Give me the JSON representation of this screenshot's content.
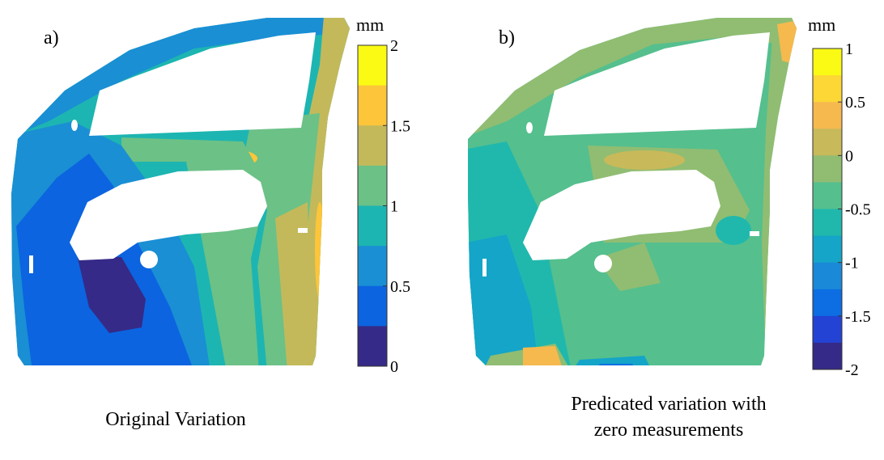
{
  "panels": [
    {
      "letter": "a)",
      "caption": "Original Variation",
      "colorbar_unit": "mm",
      "colorbar_range": [
        0,
        2
      ],
      "colorbar_ticks": [
        "2",
        "1.5",
        "1",
        "0.5",
        "0"
      ],
      "colorbar_colors": [
        "#fafa14",
        "#fcc53a",
        "#c3b95b",
        "#6cc186",
        "#1db5b1",
        "#1a8fd4",
        "#0c64e0",
        "#352a87"
      ]
    },
    {
      "letter": "b)",
      "caption_lines": [
        "Predicated variation with",
        "zero measurements"
      ],
      "colorbar_unit": "mm",
      "colorbar_range": [
        -2,
        1
      ],
      "colorbar_ticks": [
        "1",
        "0.5",
        "0",
        "-0.5",
        "-1",
        "-1.5",
        "-2"
      ],
      "colorbar_colors": [
        "#fafa14",
        "#fcd735",
        "#f6b94e",
        "#c8b95a",
        "#90bd72",
        "#55bf8e",
        "#20b8ac",
        "#14a5c8",
        "#1a8ad8",
        "#0c6ee2",
        "#2343d4",
        "#352a87"
      ]
    }
  ],
  "chart_data": [
    {
      "type": "heatmap",
      "title": "Original Variation",
      "colorbar_label": "mm",
      "value_range": [
        0,
        2
      ],
      "colorbar_ticks": [
        0,
        0.5,
        1,
        1.5,
        2
      ],
      "levels": 8
    },
    {
      "type": "heatmap",
      "title": "Predicated variation with zero measurements",
      "colorbar_label": "mm",
      "value_range": [
        -2,
        1
      ],
      "colorbar_ticks": [
        -2,
        -1.5,
        -1,
        -0.5,
        0,
        0.5,
        1
      ],
      "levels": 12
    }
  ]
}
